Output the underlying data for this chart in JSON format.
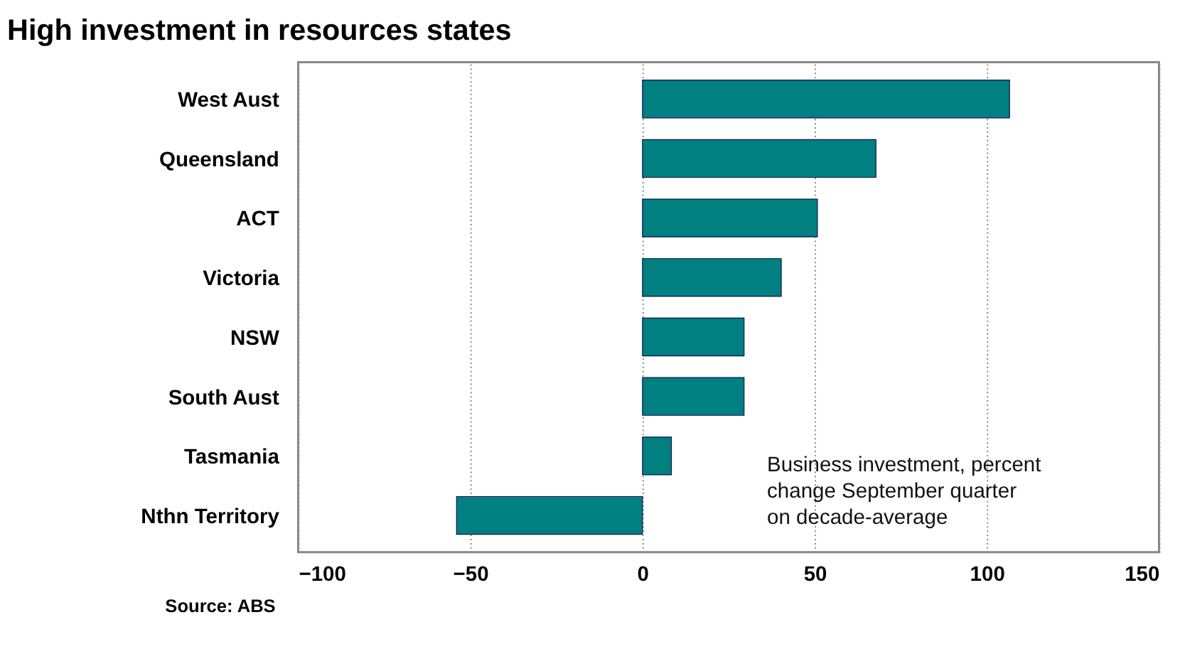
{
  "chart_data": {
    "type": "bar",
    "orientation": "horizontal",
    "title": "High investment in resources states",
    "categories": [
      "West Aust",
      "Queensland",
      "ACT",
      "Victoria",
      "NSW",
      "South Aust",
      "Tasmania",
      "Nthn Territory"
    ],
    "values": [
      106.6,
      67.8,
      50.8,
      40.3,
      29.5,
      29.5,
      8.4,
      -54
    ],
    "color": "#008080",
    "xlim": [
      -100,
      150
    ],
    "xticks": [
      -100,
      -50,
      0,
      50,
      100,
      150
    ],
    "grid": "x",
    "annotations": [
      "Business investment, percent\nchange September quarter\non decade-average",
      "Source: ABS"
    ]
  }
}
